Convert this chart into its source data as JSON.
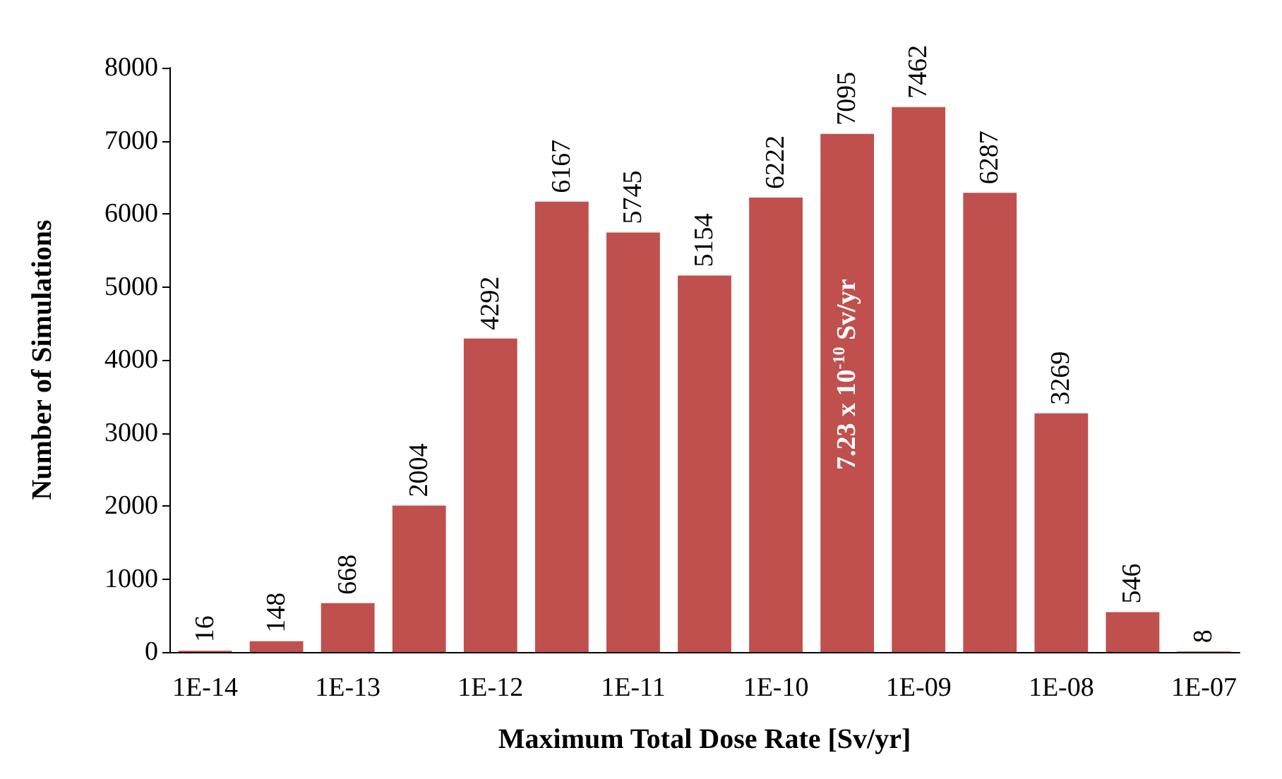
{
  "chart_data": {
    "type": "bar",
    "xlabel": "Maximum Total Dose Rate [Sv/yr]",
    "ylabel": "Number of Simulations",
    "categories": [
      "1E-14",
      null,
      "1E-13",
      null,
      "1E-12",
      null,
      "1E-11",
      null,
      "1E-10",
      null,
      "1E-09",
      null,
      "1E-08",
      null,
      "1E-07"
    ],
    "values": [
      16,
      148,
      668,
      2004,
      4292,
      6167,
      5745,
      5154,
      6222,
      7095,
      7462,
      6287,
      3269,
      546,
      8
    ],
    "color": "#c0504d",
    "ylim": [
      0,
      8000
    ],
    "yticks": [
      0,
      1000,
      2000,
      3000,
      4000,
      5000,
      6000,
      7000,
      8000
    ],
    "grid": false,
    "data_labels": true,
    "annotations": [
      "7.23 x 10$^{-10}$ Sv/yr"
    ]
  }
}
